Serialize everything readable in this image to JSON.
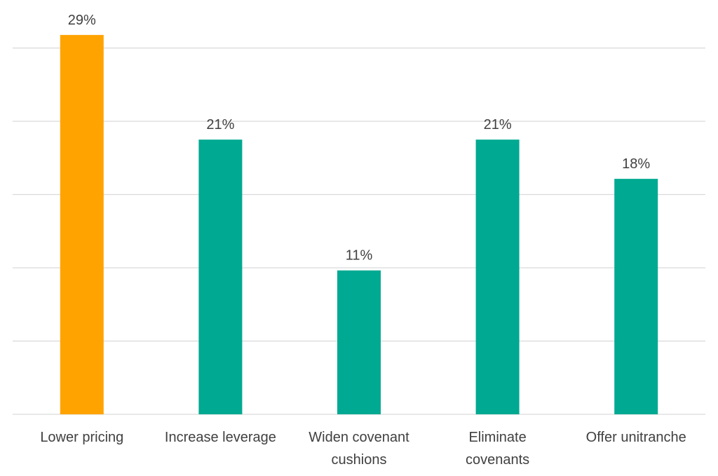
{
  "chart_data": {
    "type": "bar",
    "title": "",
    "xlabel": "",
    "ylabel": "",
    "categories": [
      [
        "Lower pricing"
      ],
      [
        "Increase leverage"
      ],
      [
        "Widen covenant",
        "cushions"
      ],
      [
        "Eliminate",
        "covenants"
      ],
      [
        "Offer unitranche"
      ]
    ],
    "values": [
      29,
      21,
      11,
      21,
      18
    ],
    "value_labels": [
      "29%",
      "21%",
      "11%",
      "21%",
      "18%"
    ],
    "ylim": [
      0,
      35
    ],
    "y_gridlines": [
      0,
      5.6,
      11.2,
      16.8,
      22.4,
      28,
      33.6
    ],
    "grid": true,
    "legend": "none",
    "colors": [
      "#FFA300",
      "#00A991",
      "#00A991",
      "#00A991",
      "#00A991"
    ]
  }
}
